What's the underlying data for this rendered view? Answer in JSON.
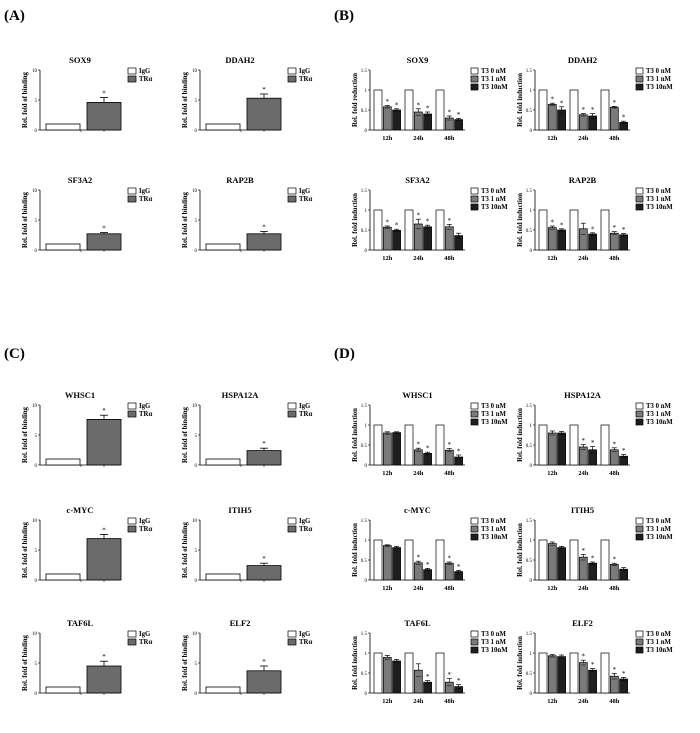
{
  "panel_labels": [
    "(A)",
    "(B)",
    "(C)",
    "(D)"
  ],
  "colors": {
    "zero": "#ffffff",
    "one": "#7a7a7a",
    "ten": "#1e1e1e",
    "tr": "#6b6b6b"
  },
  "chart_data": [
    {
      "panel": "(A)",
      "type": "bar",
      "title": "SOX9",
      "ylabel": "Rel. fold of binding",
      "ylim": [
        0,
        10
      ],
      "categories": [
        "IgG",
        "TRα"
      ],
      "values": [
        1,
        4.6
      ],
      "errors": [
        0,
        0.8
      ],
      "sig": [
        false,
        true
      ],
      "legend": [
        "IgG",
        "TRα"
      ]
    },
    {
      "panel": "(A)",
      "type": "bar",
      "title": "DDAH2",
      "ylabel": "Rel. fold of binding",
      "ylim": [
        0,
        10
      ],
      "categories": [
        "IgG",
        "TRα"
      ],
      "values": [
        1,
        5.3
      ],
      "errors": [
        0,
        0.7
      ],
      "sig": [
        false,
        true
      ],
      "legend": [
        "IgG",
        "TRα"
      ]
    },
    {
      "panel": "(A)",
      "type": "bar",
      "title": "SF3A2",
      "ylabel": "Rel. fold of binding",
      "ylim": [
        0,
        10
      ],
      "categories": [
        "IgG",
        "TRα"
      ],
      "values": [
        1,
        2.7
      ],
      "errors": [
        0,
        0.2
      ],
      "sig": [
        false,
        true
      ],
      "legend": [
        "IgG",
        "TRα"
      ]
    },
    {
      "panel": "(A)",
      "type": "bar",
      "title": "RAP2B",
      "ylabel": "Rel. fold of binding",
      "ylim": [
        0,
        10
      ],
      "categories": [
        "IgG",
        "TRα"
      ],
      "values": [
        1,
        2.7
      ],
      "errors": [
        0,
        0.4
      ],
      "sig": [
        false,
        true
      ],
      "legend": [
        "IgG",
        "TRα"
      ]
    },
    {
      "panel": "(B)",
      "type": "bar",
      "title": "SOX9",
      "ylabel": "Rel. fold reduction",
      "ylim": [
        0,
        1.5
      ],
      "categories": [
        "12h",
        "24h",
        "48h"
      ],
      "legend": [
        "T3  0 nM",
        "T3  1 nM",
        "T3  10nM"
      ],
      "series": [
        {
          "name": "T3  0 nM",
          "values": [
            1,
            1,
            1
          ],
          "errors": [
            0,
            0,
            0
          ]
        },
        {
          "name": "T3  1 nM",
          "values": [
            0.58,
            0.45,
            0.3
          ],
          "errors": [
            0.03,
            0.08,
            0.05
          ]
        },
        {
          "name": "T3  10nM",
          "values": [
            0.5,
            0.4,
            0.26
          ],
          "errors": [
            0.03,
            0.05,
            0.03
          ]
        }
      ],
      "sig": [
        [
          false,
          true,
          true
        ],
        [
          false,
          true,
          true
        ],
        [
          false,
          true,
          true
        ]
      ]
    },
    {
      "panel": "(B)",
      "type": "bar",
      "title": "DDAH2",
      "ylabel": "Rel. fold induction",
      "ylim": [
        0,
        1.5
      ],
      "categories": [
        "12h",
        "24h",
        "48h"
      ],
      "legend": [
        "T3  0 nM",
        "T3  1 nM",
        "T3  10nM"
      ],
      "series": [
        {
          "name": "T3  0 nM",
          "values": [
            1,
            1,
            1
          ],
          "errors": [
            0,
            0,
            0
          ]
        },
        {
          "name": "T3  1 nM",
          "values": [
            0.64,
            0.38,
            0.57
          ],
          "errors": [
            0.03,
            0.03,
            0.02
          ]
        },
        {
          "name": "T3  10nM",
          "values": [
            0.5,
            0.35,
            0.19
          ],
          "errors": [
            0.08,
            0.06,
            0.03
          ]
        }
      ],
      "sig": [
        [
          false,
          true,
          true
        ],
        [
          false,
          true,
          true
        ],
        [
          false,
          true,
          true
        ]
      ]
    },
    {
      "panel": "(B)",
      "type": "bar",
      "title": "SF3A2",
      "ylabel": "Rel. fold induction",
      "ylim": [
        0,
        1.5
      ],
      "categories": [
        "12h",
        "24h",
        "48h"
      ],
      "legend": [
        "T3  0 nM",
        "T3  1 nM",
        "T3  10nM"
      ],
      "series": [
        {
          "name": "T3  0 nM",
          "values": [
            1,
            1,
            1
          ],
          "errors": [
            0,
            0,
            0
          ]
        },
        {
          "name": "T3  1 nM",
          "values": [
            0.57,
            0.65,
            0.58
          ],
          "errors": [
            0.03,
            0.12,
            0.06
          ]
        },
        {
          "name": "T3  10nM",
          "values": [
            0.49,
            0.58,
            0.36
          ],
          "errors": [
            0.03,
            0.04,
            0.06
          ]
        }
      ],
      "sig": [
        [
          false,
          true,
          true
        ],
        [
          false,
          true,
          true
        ],
        [
          false,
          true,
          false
        ]
      ]
    },
    {
      "panel": "(B)",
      "type": "bar",
      "title": "RAP2B",
      "ylabel": "Rel. fold induction",
      "ylim": [
        0,
        1.5
      ],
      "categories": [
        "12h",
        "24h",
        "48h"
      ],
      "legend": [
        "T3  0 nM",
        "T3  1 nM",
        "T3  10nM"
      ],
      "series": [
        {
          "name": "T3  0 nM",
          "values": [
            1,
            1,
            1
          ],
          "errors": [
            0,
            0,
            0
          ]
        },
        {
          "name": "T3  1 nM",
          "values": [
            0.56,
            0.53,
            0.42
          ],
          "errors": [
            0.04,
            0.14,
            0.04
          ]
        },
        {
          "name": "T3  10nM",
          "values": [
            0.5,
            0.4,
            0.38
          ],
          "errors": [
            0.03,
            0.03,
            0.03
          ]
        }
      ],
      "sig": [
        [
          false,
          true,
          true
        ],
        [
          false,
          false,
          true
        ],
        [
          false,
          true,
          true
        ]
      ]
    },
    {
      "panel": "(C)",
      "type": "bar",
      "title": "WHSC1",
      "ylabel": "Rel. fold of binding",
      "ylim": [
        0,
        10
      ],
      "categories": [
        "IgG",
        "TRα"
      ],
      "values": [
        1,
        7.6
      ],
      "errors": [
        0,
        0.7
      ],
      "sig": [
        false,
        true
      ],
      "legend": [
        "IgG",
        "TRα"
      ]
    },
    {
      "panel": "(C)",
      "type": "bar",
      "title": "HSPA12A",
      "ylabel": "Rel. fold of binding",
      "ylim": [
        0,
        10
      ],
      "categories": [
        "IgG",
        "TRα"
      ],
      "values": [
        1,
        2.4
      ],
      "errors": [
        0,
        0.4
      ],
      "sig": [
        false,
        true
      ],
      "legend": [
        "IgG",
        "TRα"
      ]
    },
    {
      "panel": "(C)",
      "type": "bar",
      "title": "c-MYC",
      "ylabel": "Rel. fold of binding",
      "ylim": [
        0,
        10
      ],
      "categories": [
        "IgG",
        "TRα"
      ],
      "values": [
        1,
        6.9
      ],
      "errors": [
        0,
        0.7
      ],
      "sig": [
        false,
        true
      ],
      "legend": [
        "IgG",
        "TRα"
      ]
    },
    {
      "panel": "(C)",
      "type": "bar",
      "title": "ITIH5",
      "ylabel": "Rel. fold of binding",
      "ylim": [
        0,
        10
      ],
      "categories": [
        "IgG",
        "TRα"
      ],
      "values": [
        1,
        2.4
      ],
      "errors": [
        0,
        0.4
      ],
      "sig": [
        false,
        true
      ],
      "legend": [
        "IgG",
        "TRα"
      ]
    },
    {
      "panel": "(C)",
      "type": "bar",
      "title": "TAF6L",
      "ylabel": "Rel. fold of binding",
      "ylim": [
        0,
        10
      ],
      "categories": [
        "IgG",
        "TRα"
      ],
      "values": [
        1,
        4.5
      ],
      "errors": [
        0,
        0.8
      ],
      "sig": [
        false,
        true
      ],
      "legend": [
        "IgG",
        "TRα"
      ]
    },
    {
      "panel": "(C)",
      "type": "bar",
      "title": "ELF2",
      "ylabel": "Rel. fold of binding",
      "ylim": [
        0,
        10
      ],
      "categories": [
        "IgG",
        "TRα"
      ],
      "values": [
        1,
        3.7
      ],
      "errors": [
        0,
        0.8
      ],
      "sig": [
        false,
        true
      ],
      "legend": [
        "IgG",
        "TRα"
      ]
    },
    {
      "panel": "(D)",
      "type": "bar",
      "title": "WHSC1",
      "ylabel": "Rel. fold induction",
      "ylim": [
        0,
        1.5
      ],
      "categories": [
        "12h",
        "24h",
        "48h"
      ],
      "legend": [
        "T3  0 nM",
        "T3  1 nM",
        "T3  10nM"
      ],
      "series": [
        {
          "name": "T3  0 nM",
          "values": [
            1,
            1,
            1
          ],
          "errors": [
            0,
            0,
            0
          ]
        },
        {
          "name": "T3  1 nM",
          "values": [
            0.8,
            0.38,
            0.37
          ],
          "errors": [
            0.03,
            0.04,
            0.04
          ]
        },
        {
          "name": "T3  10nM",
          "values": [
            0.81,
            0.29,
            0.2
          ],
          "errors": [
            0.02,
            0.03,
            0.05
          ]
        }
      ],
      "sig": [
        [
          false,
          false,
          false
        ],
        [
          false,
          true,
          true
        ],
        [
          false,
          true,
          true
        ]
      ]
    },
    {
      "panel": "(D)",
      "type": "bar",
      "title": "HSPA12A",
      "ylabel": "Rel. fold induction",
      "ylim": [
        0,
        1.5
      ],
      "categories": [
        "12h",
        "24h",
        "48h"
      ],
      "legend": [
        "T3  0 nM",
        "T3  1 nM",
        "T3  10nM"
      ],
      "series": [
        {
          "name": "T3  0 nM",
          "values": [
            1,
            1,
            1
          ],
          "errors": [
            0,
            0,
            0
          ]
        },
        {
          "name": "T3  1 nM",
          "values": [
            0.8,
            0.45,
            0.38
          ],
          "errors": [
            0.05,
            0.06,
            0.05
          ]
        },
        {
          "name": "T3  10nM",
          "values": [
            0.8,
            0.38,
            0.22
          ],
          "errors": [
            0.04,
            0.08,
            0.04
          ]
        }
      ],
      "sig": [
        [
          false,
          false,
          false
        ],
        [
          false,
          true,
          true
        ],
        [
          false,
          true,
          true
        ]
      ]
    },
    {
      "panel": "(D)",
      "type": "bar",
      "title": "c-MYC",
      "ylabel": "Rel. fold induction",
      "ylim": [
        0,
        1.5
      ],
      "categories": [
        "12h",
        "24h",
        "48h"
      ],
      "legend": [
        "T3  0 nM",
        "T3  1 nM",
        "T3  10nM"
      ],
      "series": [
        {
          "name": "T3  0 nM",
          "values": [
            1,
            1,
            1
          ],
          "errors": [
            0,
            0,
            0
          ]
        },
        {
          "name": "T3  1 nM",
          "values": [
            0.86,
            0.43,
            0.42
          ],
          "errors": [
            0.02,
            0.04,
            0.03
          ]
        },
        {
          "name": "T3  10nM",
          "values": [
            0.81,
            0.26,
            0.21
          ],
          "errors": [
            0.03,
            0.03,
            0.03
          ]
        }
      ],
      "sig": [
        [
          false,
          false,
          false
        ],
        [
          false,
          true,
          true
        ],
        [
          false,
          true,
          true
        ]
      ]
    },
    {
      "panel": "(D)",
      "type": "bar",
      "title": "ITIH5",
      "ylabel": "Rel. fold induction",
      "ylim": [
        0,
        1.5
      ],
      "categories": [
        "12h",
        "24h",
        "48h"
      ],
      "legend": [
        "T3  0 nM",
        "T3  1 nM",
        "T3  10nM"
      ],
      "series": [
        {
          "name": "T3  0 nM",
          "values": [
            1,
            1,
            1
          ],
          "errors": [
            0,
            0,
            0
          ]
        },
        {
          "name": "T3  1 nM",
          "values": [
            0.91,
            0.57,
            0.39
          ],
          "errors": [
            0.04,
            0.07,
            0.03
          ]
        },
        {
          "name": "T3  10nM",
          "values": [
            0.81,
            0.42,
            0.27
          ],
          "errors": [
            0.03,
            0.03,
            0.04
          ]
        }
      ],
      "sig": [
        [
          false,
          false,
          false
        ],
        [
          false,
          true,
          true
        ],
        [
          false,
          true,
          false
        ]
      ]
    },
    {
      "panel": "(D)",
      "type": "bar",
      "title": "TAF6L",
      "ylabel": "Rel. fold induction",
      "ylim": [
        0,
        1.5
      ],
      "categories": [
        "12h",
        "24h",
        "48h"
      ],
      "legend": [
        "T3  0 nM",
        "T3  1 nM",
        "T3  10nM"
      ],
      "series": [
        {
          "name": "T3  0 nM",
          "values": [
            1,
            1,
            1
          ],
          "errors": [
            0,
            0,
            0
          ]
        },
        {
          "name": "T3  1 nM",
          "values": [
            0.89,
            0.57,
            0.27
          ],
          "errors": [
            0.05,
            0.16,
            0.09
          ]
        },
        {
          "name": "T3  10nM",
          "values": [
            0.8,
            0.27,
            0.16
          ],
          "errors": [
            0.04,
            0.04,
            0.05
          ]
        }
      ],
      "sig": [
        [
          false,
          false,
          false
        ],
        [
          false,
          false,
          true
        ],
        [
          false,
          true,
          true
        ]
      ]
    },
    {
      "panel": "(D)",
      "type": "bar",
      "title": "ELF2",
      "ylabel": "Rel. fold induction",
      "ylim": [
        0,
        1.5
      ],
      "categories": [
        "12h",
        "24h",
        "48h"
      ],
      "legend": [
        "T3  0 nM",
        "T3  1 nM",
        "T3  10nM"
      ],
      "series": [
        {
          "name": "T3  0 nM",
          "values": [
            1,
            1,
            1
          ],
          "errors": [
            0,
            0,
            0
          ]
        },
        {
          "name": "T3  1 nM",
          "values": [
            0.93,
            0.76,
            0.42
          ],
          "errors": [
            0.03,
            0.06,
            0.07
          ]
        },
        {
          "name": "T3  10nM",
          "values": [
            0.91,
            0.57,
            0.35
          ],
          "errors": [
            0.04,
            0.04,
            0.04
          ]
        }
      ],
      "sig": [
        [
          false,
          false,
          false
        ],
        [
          false,
          true,
          true
        ],
        [
          false,
          true,
          true
        ]
      ]
    }
  ]
}
